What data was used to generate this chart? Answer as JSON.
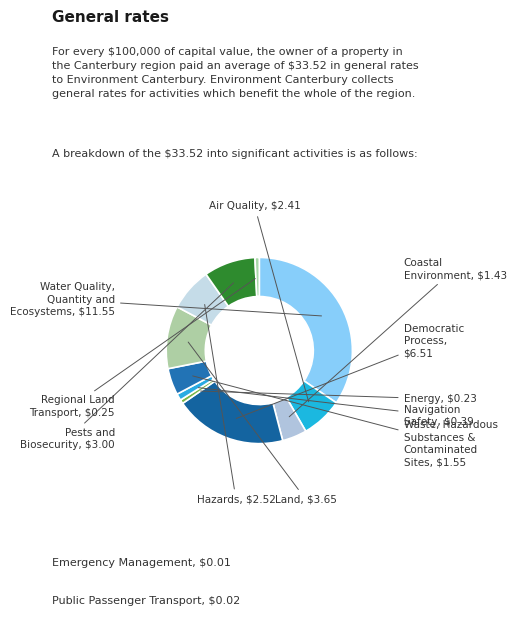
{
  "title": "General rates",
  "header_text": "For every $100,000 of capital value, the owner of a property in\nthe Canterbury region paid an average of $33.52 in general rates\nto Environment Canterbury. Environment Canterbury collects\ngeneral rates for activities which benefit the whole of the region.",
  "subtitle": "A breakdown of the $33.52 into significant activities is as follows:",
  "values": [
    11.55,
    2.41,
    1.43,
    6.51,
    0.23,
    0.39,
    1.55,
    3.65,
    2.52,
    3.0,
    0.25
  ],
  "colors": [
    "#87CEFA",
    "#1BB8E0",
    "#B0C4DE",
    "#1464A0",
    "#7AB648",
    "#29ABE2",
    "#2273B5",
    "#AECFA4",
    "#C5DCE8",
    "#2E8B2E",
    "#A8D8A8"
  ],
  "labels": [
    "Water Quality,\nQuantity and\nEcosystems, $11.55",
    "Air Quality, $2.41",
    "Coastal\nEnvironment, $1.43",
    "Democratic\nProcess,\n$6.51",
    "Energy, $0.23",
    "Navigation\nSafety, $0.39",
    "Waste, Hazardous\nSubstances &\nContaminated\nSites, $1.55",
    "Land, $3.65",
    "Hazards, $2.52",
    "Pests and\nBiosecurity, $3.00",
    "Regional Land\nTransport, $0.25"
  ],
  "footnotes": [
    "Emergency Management, $0.01",
    "Public Passenger Transport, $0.02"
  ],
  "bg_color": "#ffffff"
}
